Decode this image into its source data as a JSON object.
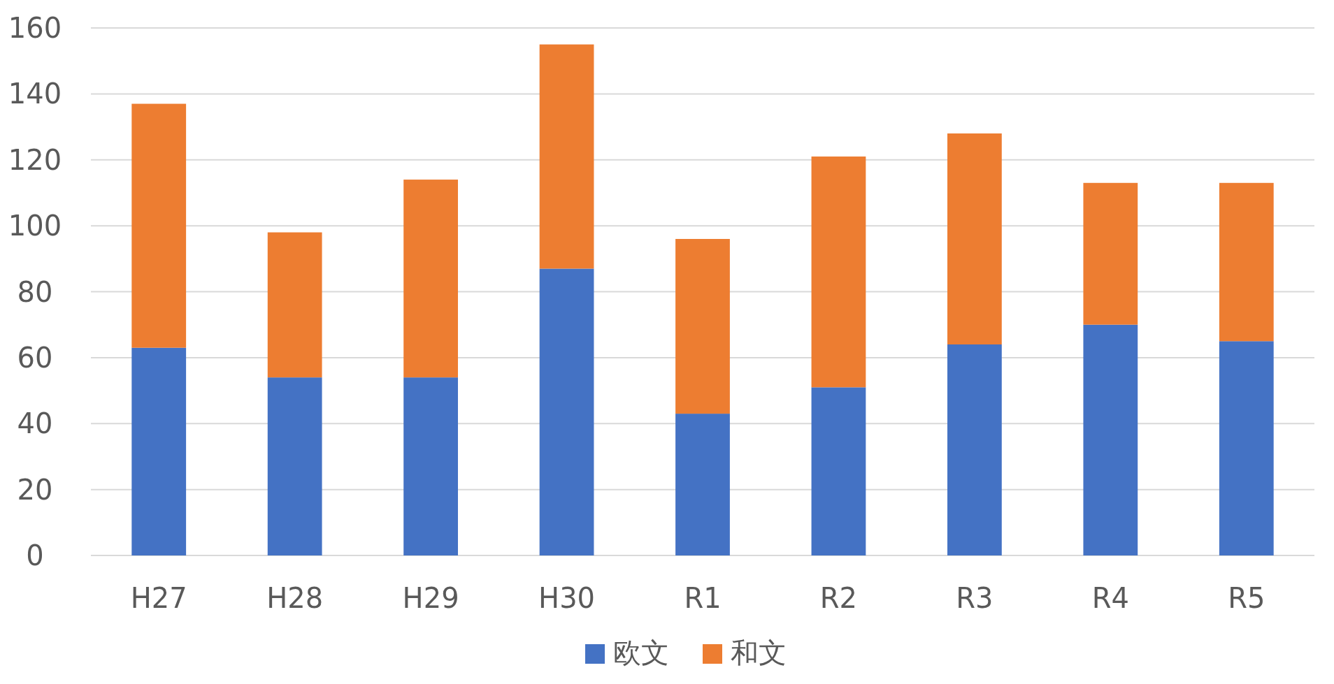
{
  "chart_data": {
    "type": "bar",
    "stacked": true,
    "categories": [
      "H27",
      "H28",
      "H29",
      "H30",
      "R1",
      "R2",
      "R3",
      "R4",
      "R5"
    ],
    "series": [
      {
        "name": "欧文",
        "color": "#4472c4",
        "values": [
          63,
          54,
          54,
          87,
          43,
          51,
          64,
          70,
          65
        ]
      },
      {
        "name": "和文",
        "color": "#ed7d31",
        "values": [
          74,
          44,
          60,
          68,
          53,
          70,
          64,
          43,
          48
        ]
      }
    ],
    "ylim": [
      0,
      160
    ],
    "yticks": [
      0,
      20,
      40,
      60,
      80,
      100,
      120,
      140,
      160
    ],
    "grid": "y",
    "legend": "bottom"
  }
}
